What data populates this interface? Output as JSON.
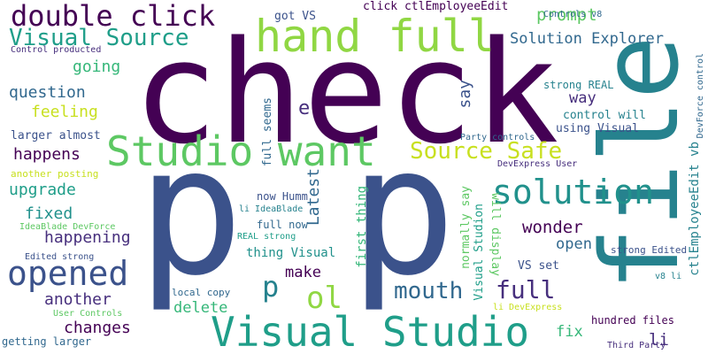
{
  "palette": {
    "purple": "#440154",
    "indigo": "#472f7d",
    "blue": "#3b528b",
    "slate": "#31688e",
    "teal": "#26828e",
    "aqua": "#21918c",
    "sea": "#1f9e89",
    "green": "#35b779",
    "leaf": "#5dc863",
    "lime": "#90d743",
    "yellow": "#c8e020",
    "gold": "#fde725"
  },
  "words": [
    "check",
    "p",
    "p",
    "file",
    "Studio want",
    "hand full",
    "double click",
    "Visual Studio",
    "solution",
    "opened",
    "Visual Source",
    "Source Safe",
    "ol",
    "mouth",
    "p",
    "full",
    "prompt",
    "Solution Explorer",
    "going",
    "question",
    "feeling",
    "happens",
    "upgrade",
    "fixed",
    "happening",
    "another",
    "changes",
    "make",
    "delete",
    "wonder",
    "open",
    "fix",
    "li",
    "say",
    "way",
    "Latest",
    "e",
    "got VS",
    "click ctlEmployeeEdit",
    "Controls v8",
    "Control producted",
    "strong REAL",
    "control will",
    "using Visual",
    "DevForce control",
    "ctlEmployeeEdit vb",
    "larger almost",
    "Party controls",
    "DevExpress User",
    "another posting",
    "full seems",
    "now Humm",
    "li IdeaBlade",
    "full now",
    "IdeaBlade DevForce",
    "REAL strong",
    "thing Visual",
    "Edited strong",
    "local copy",
    "User Controls",
    "getting larger",
    "first thing",
    "normally say",
    "Visual Studion",
    "will display",
    "VS set",
    "strong Edited",
    "v8 li",
    "li DevExpress",
    "hundred files",
    "Third Party"
  ]
}
